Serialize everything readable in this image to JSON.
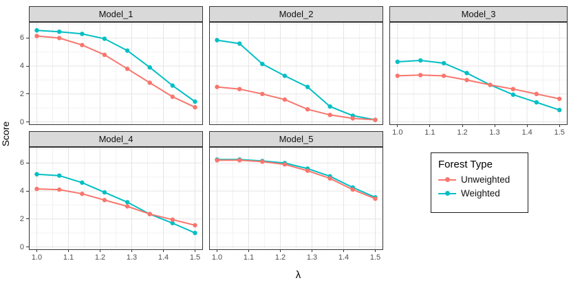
{
  "axes": {
    "y_title": "Score",
    "x_title": "λ",
    "y_ticks": [
      "0",
      "2",
      "4",
      "6"
    ],
    "x_ticks": [
      "1.0",
      "1.1",
      "1.2",
      "1.3",
      "1.4",
      "1.5"
    ]
  },
  "legend": {
    "title": "Forest Type",
    "items": [
      {
        "label": "Unweighted",
        "color": "#f8766d"
      },
      {
        "label": "Weighted",
        "color": "#00bfc4"
      }
    ]
  },
  "style": {
    "strip_bg": "#d9d9d9",
    "panel_border": "#333333",
    "grid_major": "#e4e4e4",
    "grid_minor": "#f2f2f2",
    "tick_text": "#4d4d4d"
  },
  "chart_data": [
    {
      "type": "line",
      "title": "Model_1",
      "xlabel": "λ",
      "ylabel": "Score",
      "xlim": [
        1.0,
        1.5
      ],
      "ylim": [
        0,
        7
      ],
      "x": [
        1.0,
        1.071,
        1.143,
        1.214,
        1.286,
        1.357,
        1.429,
        1.5
      ],
      "series": [
        {
          "name": "Unweighted",
          "color": "#f8766d",
          "values": [
            6.15,
            6.0,
            5.5,
            4.8,
            3.8,
            2.8,
            1.8,
            1.05
          ]
        },
        {
          "name": "Weighted",
          "color": "#00bfc4",
          "values": [
            6.55,
            6.45,
            6.3,
            5.95,
            5.1,
            3.9,
            2.6,
            1.45
          ]
        }
      ]
    },
    {
      "type": "line",
      "title": "Model_2",
      "xlabel": "λ",
      "ylabel": "Score",
      "xlim": [
        1.0,
        1.5
      ],
      "ylim": [
        0,
        7
      ],
      "x": [
        1.0,
        1.071,
        1.143,
        1.214,
        1.286,
        1.357,
        1.429,
        1.5
      ],
      "series": [
        {
          "name": "Unweighted",
          "color": "#f8766d",
          "values": [
            2.5,
            2.35,
            2.0,
            1.6,
            0.9,
            0.5,
            0.25,
            0.15
          ]
        },
        {
          "name": "Weighted",
          "color": "#00bfc4",
          "values": [
            5.85,
            5.6,
            4.15,
            3.3,
            2.5,
            1.1,
            0.45,
            0.15
          ]
        }
      ]
    },
    {
      "type": "line",
      "title": "Model_3",
      "xlabel": "λ",
      "ylabel": "Score",
      "xlim": [
        1.0,
        1.5
      ],
      "ylim": [
        0,
        7
      ],
      "x": [
        1.0,
        1.071,
        1.143,
        1.214,
        1.286,
        1.357,
        1.429,
        1.5
      ],
      "series": [
        {
          "name": "Unweighted",
          "color": "#f8766d",
          "values": [
            3.3,
            3.35,
            3.3,
            3.0,
            2.65,
            2.35,
            2.0,
            1.65
          ]
        },
        {
          "name": "Weighted",
          "color": "#00bfc4",
          "values": [
            4.3,
            4.4,
            4.2,
            3.5,
            2.65,
            1.95,
            1.4,
            0.85
          ]
        }
      ]
    },
    {
      "type": "line",
      "title": "Model_4",
      "xlabel": "λ",
      "ylabel": "Score",
      "xlim": [
        1.0,
        1.5
      ],
      "ylim": [
        0,
        7
      ],
      "x": [
        1.0,
        1.071,
        1.143,
        1.214,
        1.286,
        1.357,
        1.429,
        1.5
      ],
      "series": [
        {
          "name": "Unweighted",
          "color": "#f8766d",
          "values": [
            4.15,
            4.1,
            3.8,
            3.35,
            2.9,
            2.35,
            1.95,
            1.55
          ]
        },
        {
          "name": "Weighted",
          "color": "#00bfc4",
          "values": [
            5.2,
            5.1,
            4.6,
            3.9,
            3.2,
            2.35,
            1.7,
            1.0
          ]
        }
      ]
    },
    {
      "type": "line",
      "title": "Model_5",
      "xlabel": "λ",
      "ylabel": "Score",
      "xlim": [
        1.0,
        1.5
      ],
      "ylim": [
        0,
        7
      ],
      "x": [
        1.0,
        1.071,
        1.143,
        1.214,
        1.286,
        1.357,
        1.429,
        1.5
      ],
      "series": [
        {
          "name": "Unweighted",
          "color": "#f8766d",
          "values": [
            6.2,
            6.2,
            6.1,
            5.9,
            5.45,
            4.9,
            4.1,
            3.45
          ]
        },
        {
          "name": "Weighted",
          "color": "#00bfc4",
          "values": [
            6.25,
            6.25,
            6.15,
            6.0,
            5.6,
            5.05,
            4.25,
            3.55
          ]
        }
      ]
    }
  ]
}
